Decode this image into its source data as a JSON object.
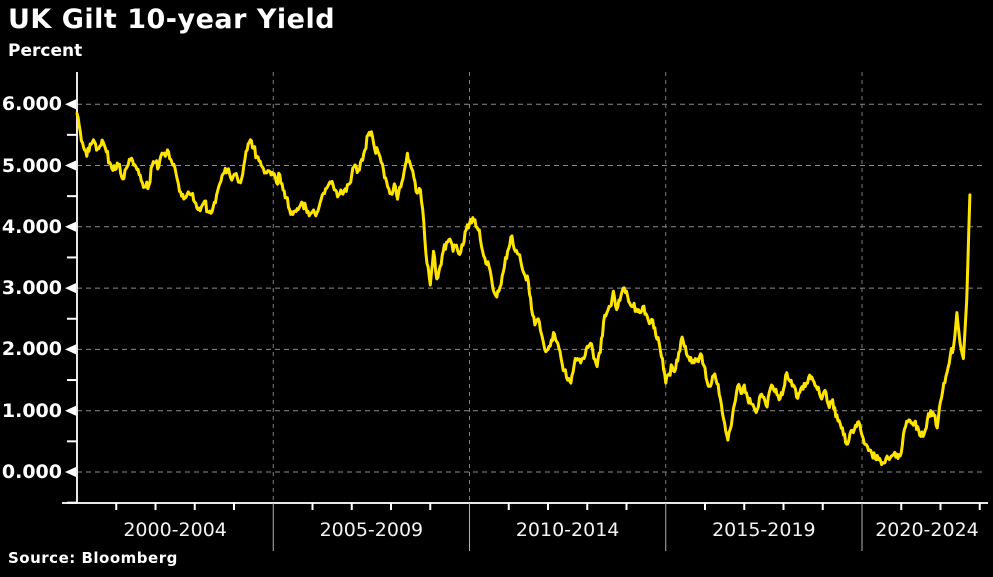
{
  "header": {
    "title": "UK Gilt 10-year Yield",
    "subtitle": "Percent"
  },
  "footer": {
    "source": "Source: Bloomberg"
  },
  "colors": {
    "background": "#000000",
    "line": "#ffe400",
    "grid": "#8c8c8c",
    "axis": "#e8e8e8",
    "separator": "#b0b0b0",
    "text": "#ffffff"
  },
  "chart_data": {
    "type": "line",
    "title": "UK Gilt 10-year Yield",
    "ylabel": "Percent",
    "source": "Source: Bloomberg",
    "grid": {
      "horizontal": true,
      "vertical": true,
      "style": "dashed"
    },
    "legend": "none",
    "x_axis": {
      "unit": "year",
      "start": 2000,
      "end": 2025,
      "band_boundaries": [
        2000,
        2005,
        2010,
        2015,
        2020,
        2025
      ],
      "band_labels": [
        "2000-2004",
        "2005-2009",
        "2010-2014",
        "2015-2019",
        "2020-2024"
      ]
    },
    "y_axis": {
      "tick_values": [
        0,
        1,
        2,
        3,
        4,
        5,
        6
      ],
      "tick_labels": [
        "0.000",
        "1.000",
        "2.000",
        "3.000",
        "4.000",
        "5.000",
        "6.000"
      ],
      "minor_tick_values": [
        -0.5,
        0.5,
        1.5,
        2.5,
        3.5,
        4.5,
        5.5
      ],
      "range_shown": [
        -0.5,
        6.5
      ]
    },
    "series": [
      {
        "name": "UK Gilt 10-year Yield",
        "color": "#ffe400",
        "sampling": "monthly",
        "start": "2000-01",
        "end": "2022-10",
        "values": [
          5.85,
          5.55,
          5.3,
          5.15,
          5.35,
          5.42,
          5.25,
          5.32,
          5.38,
          5.22,
          5.05,
          4.92,
          4.95,
          5.02,
          4.78,
          4.95,
          5.1,
          5.08,
          4.98,
          4.85,
          4.72,
          4.65,
          4.68,
          5.0,
          5.05,
          4.98,
          5.2,
          5.15,
          5.22,
          5.05,
          4.95,
          4.7,
          4.5,
          4.47,
          4.57,
          4.52,
          4.4,
          4.28,
          4.32,
          4.42,
          4.25,
          4.22,
          4.4,
          4.58,
          4.74,
          4.88,
          4.93,
          4.8,
          4.85,
          4.8,
          4.72,
          5.0,
          5.25,
          5.42,
          5.28,
          5.15,
          5.07,
          4.95,
          4.88,
          4.9,
          4.85,
          4.72,
          4.85,
          4.6,
          4.48,
          4.28,
          4.2,
          4.25,
          4.32,
          4.39,
          4.3,
          4.18,
          4.25,
          4.18,
          4.32,
          4.52,
          4.62,
          4.7,
          4.74,
          4.6,
          4.52,
          4.55,
          4.62,
          4.69,
          4.85,
          5.01,
          4.92,
          5.1,
          5.25,
          5.5,
          5.55,
          5.28,
          5.23,
          5.05,
          4.8,
          4.65,
          4.55,
          4.7,
          4.45,
          4.65,
          4.9,
          5.2,
          5.0,
          4.8,
          4.55,
          4.6,
          4.1,
          3.4,
          3.05,
          3.6,
          3.15,
          3.35,
          3.6,
          3.75,
          3.8,
          3.6,
          3.7,
          3.55,
          3.7,
          3.95,
          4.05,
          4.15,
          4.0,
          3.95,
          3.6,
          3.4,
          3.35,
          3.05,
          2.88,
          2.95,
          3.2,
          3.5,
          3.65,
          3.85,
          3.6,
          3.55,
          3.35,
          3.2,
          3.1,
          2.65,
          2.4,
          2.5,
          2.25,
          2.0,
          2.0,
          2.15,
          2.25,
          2.1,
          1.85,
          1.65,
          1.5,
          1.45,
          1.75,
          1.85,
          1.78,
          1.85,
          2.05,
          2.1,
          1.85,
          1.72,
          1.95,
          2.45,
          2.6,
          2.7,
          2.95,
          2.65,
          2.8,
          3.0,
          2.95,
          2.75,
          2.7,
          2.66,
          2.6,
          2.7,
          2.58,
          2.42,
          2.48,
          2.22,
          2.1,
          1.85,
          1.45,
          1.6,
          1.72,
          1.68,
          1.95,
          2.2,
          2.05,
          1.88,
          1.78,
          1.85,
          1.8,
          1.9,
          1.7,
          1.4,
          1.45,
          1.6,
          1.43,
          1.1,
          0.8,
          0.52,
          0.75,
          1.1,
          1.4,
          1.28,
          1.42,
          1.22,
          1.12,
          1.05,
          1.02,
          1.26,
          1.22,
          1.06,
          1.36,
          1.34,
          1.26,
          1.2,
          1.35,
          1.62,
          1.48,
          1.42,
          1.22,
          1.3,
          1.35,
          1.45,
          1.58,
          1.5,
          1.4,
          1.28,
          1.25,
          1.3,
          1.05,
          1.18,
          0.9,
          0.84,
          0.72,
          0.48,
          0.52,
          0.68,
          0.76,
          0.82,
          0.6,
          0.45,
          0.35,
          0.3,
          0.22,
          0.2,
          0.12,
          0.15,
          0.22,
          0.26,
          0.32,
          0.22,
          0.32,
          0.7,
          0.82,
          0.8,
          0.8,
          0.74,
          0.58,
          0.62,
          0.86,
          1.0,
          0.92,
          0.72,
          1.15,
          1.45,
          1.62,
          1.9,
          2.05,
          2.6,
          2.1,
          1.85,
          2.8,
          4.52
        ]
      }
    ]
  }
}
